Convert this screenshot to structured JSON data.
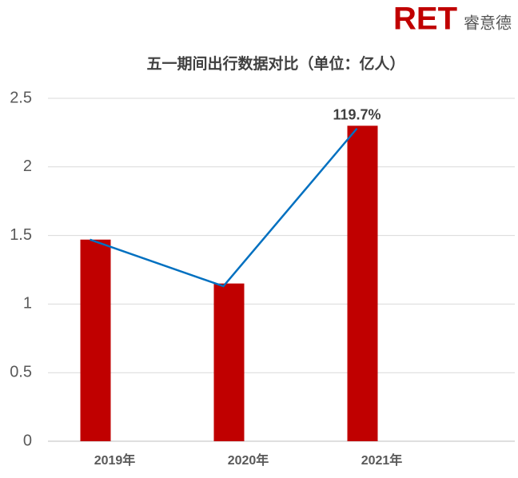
{
  "logo": {
    "brand": "RET",
    "name": "睿意德"
  },
  "chart_data": {
    "type": "combo",
    "title": "五一期间出行数据对比（单位：亿人）",
    "categories": [
      "2019年",
      "2020年",
      "2021年"
    ],
    "series": [
      {
        "type": "bar",
        "color": "#c00000",
        "values": [
          1.47,
          1.15,
          2.3
        ]
      },
      {
        "type": "line",
        "color": "#0070c0",
        "values": [
          1.47,
          1.13,
          2.28
        ]
      }
    ],
    "annotation": "119.7%",
    "ylim": [
      0,
      2.5
    ],
    "yticks": [
      0,
      0.5,
      1,
      1.5,
      2,
      2.5
    ],
    "grid": true
  }
}
